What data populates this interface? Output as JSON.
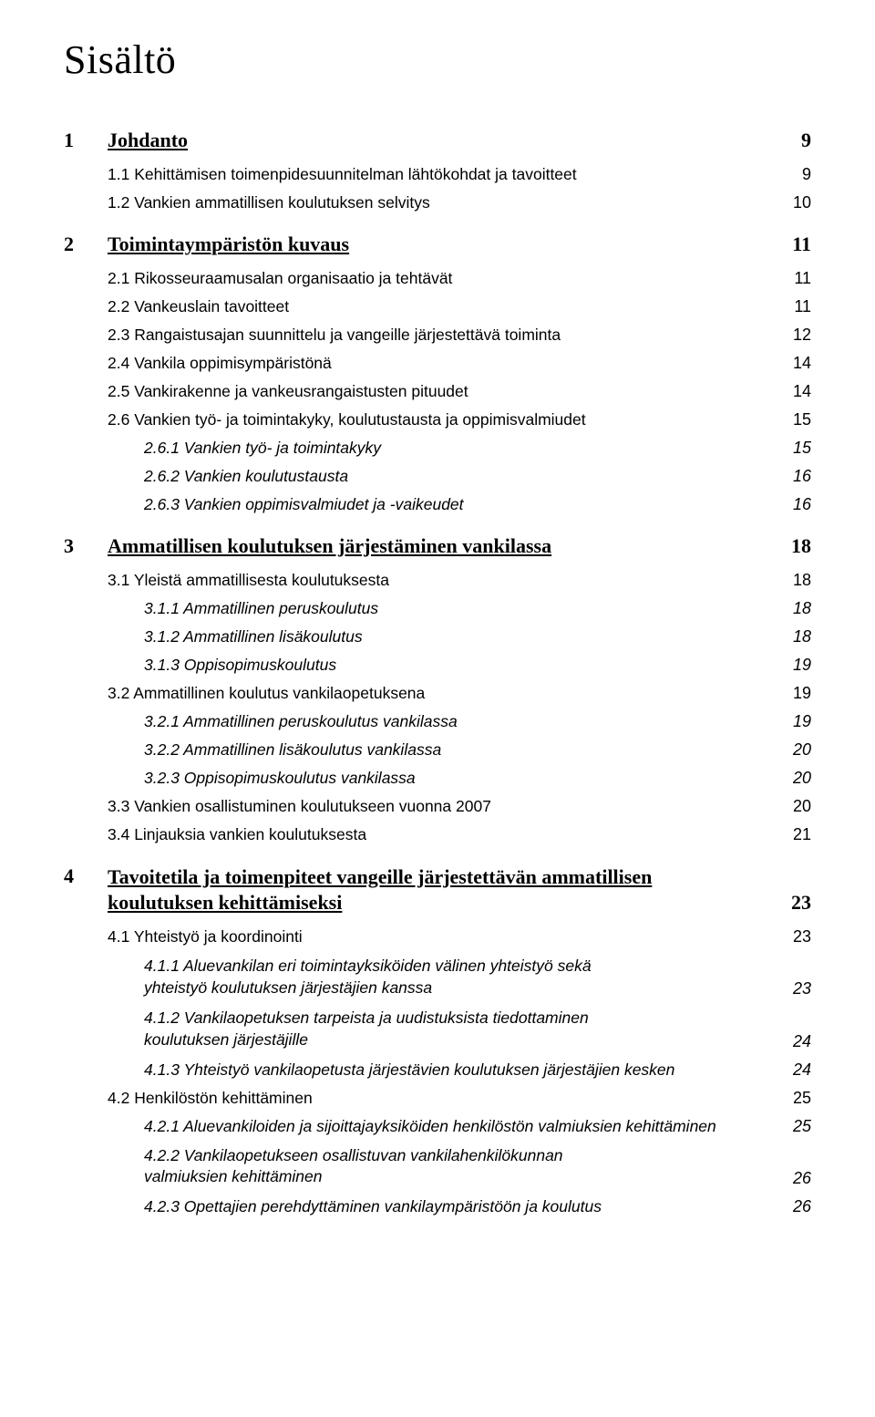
{
  "title": "Sisältö",
  "chapters": [
    {
      "num": "1",
      "label": "Johdanto",
      "page": "9",
      "items": [
        {
          "level": 2,
          "text": "1.1 Kehittämisen toimenpidesuunnitelman lähtökohdat ja tavoitteet",
          "page": "9"
        },
        {
          "level": 2,
          "text": "1.2 Vankien ammatillisen koulutuksen selvitys",
          "page": "10"
        }
      ]
    },
    {
      "num": "2",
      "label": "Toimintaympäristön kuvaus",
      "page": "11",
      "items": [
        {
          "level": 2,
          "text": "2.1 Rikosseuraamusalan organisaatio ja tehtävät",
          "page": "11"
        },
        {
          "level": 2,
          "text": "2.2 Vankeuslain tavoitteet",
          "page": "11"
        },
        {
          "level": 2,
          "text": "2.3 Rangaistusajan suunnittelu ja vangeille järjestettävä toiminta",
          "page": "12"
        },
        {
          "level": 2,
          "text": "2.4 Vankila oppimisympäristönä",
          "page": "14"
        },
        {
          "level": 2,
          "text": "2.5 Vankirakenne ja vankeusrangaistusten pituudet",
          "page": "14"
        },
        {
          "level": 2,
          "text": "2.6 Vankien työ- ja toimintakyky, koulutustausta ja oppimisvalmiudet",
          "page": "15"
        },
        {
          "level": 3,
          "text": "2.6.1 Vankien työ- ja toimintakyky",
          "page": "15"
        },
        {
          "level": 3,
          "text": "2.6.2 Vankien koulutustausta",
          "page": "16"
        },
        {
          "level": 3,
          "text": "2.6.3 Vankien oppimisvalmiudet ja -vaikeudet",
          "page": "16"
        }
      ]
    },
    {
      "num": "3",
      "label": "Ammatillisen koulutuksen järjestäminen vankilassa",
      "page": "18",
      "items": [
        {
          "level": 2,
          "text": "3.1 Yleistä ammatillisesta koulutuksesta",
          "page": "18"
        },
        {
          "level": 3,
          "text": "3.1.1 Ammatillinen peruskoulutus",
          "page": "18"
        },
        {
          "level": 3,
          "text": "3.1.2 Ammatillinen lisäkoulutus",
          "page": "18"
        },
        {
          "level": 3,
          "text": "3.1.3 Oppisopimuskoulutus",
          "page": "19"
        },
        {
          "level": 2,
          "text": "3.2 Ammatillinen koulutus vankilaopetuksena",
          "page": "19"
        },
        {
          "level": 3,
          "text": "3.2.1 Ammatillinen peruskoulutus vankilassa",
          "page": "19"
        },
        {
          "level": 3,
          "text": "3.2.2 Ammatillinen lisäkoulutus vankilassa",
          "page": "20"
        },
        {
          "level": 3,
          "text": "3.2.3 Oppisopimuskoulutus vankilassa",
          "page": "20"
        },
        {
          "level": 2,
          "text": "3.3 Vankien osallistuminen koulutukseen vuonna 2007",
          "page": "20"
        },
        {
          "level": 2,
          "text": "3.4 Linjauksia vankien koulutuksesta",
          "page": "21"
        }
      ]
    },
    {
      "num": "4",
      "label_line1": "Tavoitetila ja toimenpiteet vangeille järjestettävän ammatillisen",
      "label_line2": "koulutuksen kehittämiseksi",
      "page": "23",
      "multiline": true,
      "items": [
        {
          "level": 2,
          "text": "4.1 Yhteistyö ja koordinointi",
          "page": "23"
        },
        {
          "level": 3,
          "multiline": true,
          "line1": "4.1.1 Aluevankilan eri toimintayksiköiden välinen yhteistyö sekä",
          "line2": "yhteistyö koulutuksen järjestäjien kanssa",
          "page": "23"
        },
        {
          "level": 3,
          "multiline": true,
          "line1": "4.1.2 Vankilaopetuksen tarpeista ja uudistuksista tiedottaminen",
          "line2": "koulutuksen järjestäjille",
          "page": "24"
        },
        {
          "level": 3,
          "text": "4.1.3 Yhteistyö vankilaopetusta järjestävien koulutuksen järjestäjien kesken",
          "page": "24"
        },
        {
          "level": 2,
          "text": "4.2 Henkilöstön kehittäminen",
          "page": "25"
        },
        {
          "level": 3,
          "text": "4.2.1 Aluevankiloiden ja sijoittajayksiköiden henkilöstön valmiuksien kehittäminen",
          "page": "25"
        },
        {
          "level": 3,
          "multiline": true,
          "line1": "4.2.2 Vankilaopetukseen osallistuvan vankilahenkilökunnan",
          "line2": "valmiuksien kehittäminen",
          "page": "26"
        },
        {
          "level": 3,
          "text": "4.2.3 Opettajien perehdyttäminen vankilaympäristöön ja koulutus",
          "page": "26"
        }
      ]
    }
  ]
}
